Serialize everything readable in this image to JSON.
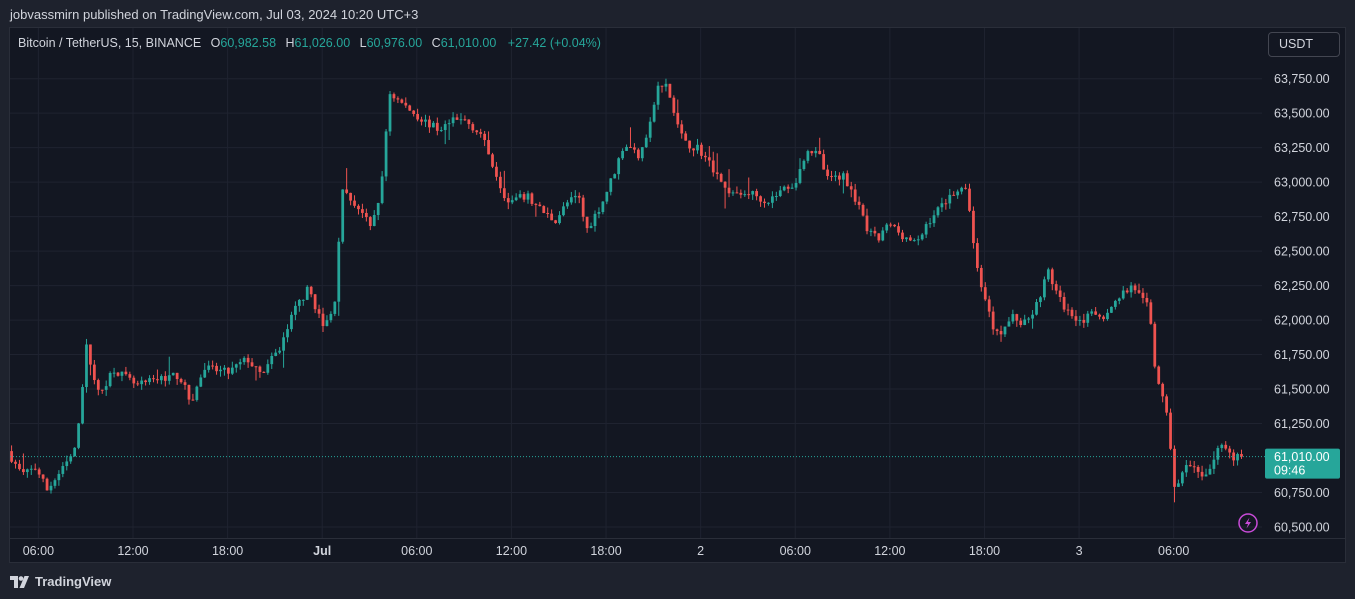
{
  "header": {
    "publisher_line": "jobvassmirn published on TradingView.com, Jul 03, 2024 10:20 UTC+3"
  },
  "legend": {
    "symbol": "Bitcoin / TetherUS, 15, BINANCE",
    "o_label": "O",
    "o_value": "60,982.58",
    "h_label": "H",
    "h_value": "61,026.00",
    "l_label": "L",
    "l_value": "60,976.00",
    "c_label": "C",
    "c_value": "61,010.00",
    "change": "+27.42 (+0.04%)"
  },
  "currency_button": {
    "label": "USDT"
  },
  "price_tag": {
    "price": "61,010.00",
    "countdown": "09:46"
  },
  "footer": {
    "brand": "TradingView"
  },
  "colors": {
    "up": "#26a69a",
    "down": "#ef5350",
    "background": "#131722",
    "grid": "#1f2330",
    "text": "#d1d4dc",
    "alert_icon": "#c84bd8"
  },
  "icons": {
    "alert": "lightning-icon",
    "logo": "tradingview-logo-icon"
  },
  "chart_data": {
    "type": "candlestick",
    "title": "",
    "xlabel": "",
    "ylabel": "",
    "ylim": [
      60420,
      63900
    ],
    "last_price": 61010,
    "y_ticks": [
      {
        "value": 63750,
        "label": "63,750.00"
      },
      {
        "value": 63500,
        "label": "63,500.00"
      },
      {
        "value": 63250,
        "label": "63,250.00"
      },
      {
        "value": 63000,
        "label": "63,000.00"
      },
      {
        "value": 62750,
        "label": "62,750.00"
      },
      {
        "value": 62500,
        "label": "62,500.00"
      },
      {
        "value": 62250,
        "label": "62,250.00"
      },
      {
        "value": 62000,
        "label": "62,000.00"
      },
      {
        "value": 61750,
        "label": "61,750.00"
      },
      {
        "value": 61500,
        "label": "61,500.00"
      },
      {
        "value": 61250,
        "label": "61,250.00"
      },
      {
        "value": 60750,
        "label": "60,750.00"
      },
      {
        "value": 60500,
        "label": "60,500.00"
      }
    ],
    "x_ticks": [
      {
        "t": 6,
        "label": "06:00",
        "bold": false
      },
      {
        "t": 12,
        "label": "12:00",
        "bold": false
      },
      {
        "t": 18,
        "label": "18:00",
        "bold": false
      },
      {
        "t": 24,
        "label": "Jul",
        "bold": true
      },
      {
        "t": 30,
        "label": "06:00",
        "bold": false
      },
      {
        "t": 36,
        "label": "12:00",
        "bold": false
      },
      {
        "t": 42,
        "label": "18:00",
        "bold": false
      },
      {
        "t": 48,
        "label": "2",
        "bold": false
      },
      {
        "t": 54,
        "label": "06:00",
        "bold": false
      },
      {
        "t": 60,
        "label": "12:00",
        "bold": false
      },
      {
        "t": 66,
        "label": "18:00",
        "bold": false
      },
      {
        "t": 72,
        "label": "3",
        "bold": false
      },
      {
        "t": 78,
        "label": "06:00",
        "bold": false
      }
    ],
    "t_range": [
      4.2,
      83.6
    ],
    "interval_hours": 0.25,
    "start_t": 4.3,
    "path": [
      [
        4.3,
        61050
      ],
      [
        5.2,
        60880
      ],
      [
        6.1,
        60930
      ],
      [
        6.8,
        60770
      ],
      [
        7.8,
        60920
      ],
      [
        8.6,
        61060
      ],
      [
        9.3,
        61800
      ],
      [
        10.1,
        61450
      ],
      [
        11.0,
        61650
      ],
      [
        12.5,
        61520
      ],
      [
        14.0,
        61580
      ],
      [
        15.2,
        61600
      ],
      [
        15.9,
        61400
      ],
      [
        16.8,
        61650
      ],
      [
        18.3,
        61620
      ],
      [
        19.5,
        61720
      ],
      [
        20.3,
        61600
      ],
      [
        21.5,
        61780
      ],
      [
        22.6,
        62100
      ],
      [
        23.4,
        62230
      ],
      [
        24.3,
        61950
      ],
      [
        25.0,
        62070
      ],
      [
        25.5,
        62930
      ],
      [
        26.7,
        62800
      ],
      [
        27.3,
        62660
      ],
      [
        28.0,
        62950
      ],
      [
        28.5,
        63650
      ],
      [
        29.2,
        63580
      ],
      [
        30.5,
        63460
      ],
      [
        31.6,
        63380
      ],
      [
        32.5,
        63440
      ],
      [
        33.3,
        63450
      ],
      [
        34.3,
        63350
      ],
      [
        35.0,
        63150
      ],
      [
        36.0,
        62850
      ],
      [
        37.2,
        62900
      ],
      [
        38.3,
        62780
      ],
      [
        39.0,
        62720
      ],
      [
        39.8,
        62850
      ],
      [
        40.5,
        62900
      ],
      [
        41.0,
        62650
      ],
      [
        42.0,
        62850
      ],
      [
        42.8,
        63080
      ],
      [
        43.4,
        63280
      ],
      [
        44.3,
        63200
      ],
      [
        45.0,
        63400
      ],
      [
        45.5,
        63680
      ],
      [
        46.1,
        63700
      ],
      [
        46.5,
        63520
      ],
      [
        47.2,
        63280
      ],
      [
        48.1,
        63250
      ],
      [
        48.7,
        63150
      ],
      [
        49.4,
        63050
      ],
      [
        49.8,
        62950
      ],
      [
        50.6,
        62900
      ],
      [
        51.3,
        62930
      ],
      [
        52.5,
        62860
      ],
      [
        53.5,
        62950
      ],
      [
        54.3,
        63000
      ],
      [
        55.0,
        63250
      ],
      [
        55.8,
        63180
      ],
      [
        56.3,
        63020
      ],
      [
        57.3,
        63050
      ],
      [
        58.0,
        62900
      ],
      [
        58.8,
        62650
      ],
      [
        59.5,
        62580
      ],
      [
        60.2,
        62700
      ],
      [
        61.0,
        62620
      ],
      [
        62.0,
        62550
      ],
      [
        62.6,
        62700
      ],
      [
        63.3,
        62800
      ],
      [
        64.0,
        62900
      ],
      [
        64.6,
        62950
      ],
      [
        65.2,
        62920
      ],
      [
        65.7,
        62400
      ],
      [
        66.2,
        62200
      ],
      [
        66.8,
        61950
      ],
      [
        67.4,
        61920
      ],
      [
        68.0,
        62030
      ],
      [
        68.7,
        61970
      ],
      [
        69.5,
        62100
      ],
      [
        70.3,
        62350
      ],
      [
        71.0,
        62150
      ],
      [
        71.6,
        62050
      ],
      [
        72.5,
        62000
      ],
      [
        73.3,
        62050
      ],
      [
        74.0,
        62030
      ],
      [
        74.8,
        62180
      ],
      [
        75.7,
        62250
      ],
      [
        76.2,
        62150
      ],
      [
        76.7,
        62080
      ],
      [
        77.0,
        61700
      ],
      [
        77.5,
        61450
      ],
      [
        77.9,
        61250
      ],
      [
        78.3,
        60800
      ],
      [
        79.2,
        60950
      ],
      [
        80.0,
        60850
      ],
      [
        80.7,
        60960
      ],
      [
        81.3,
        61120
      ],
      [
        82.0,
        61000
      ],
      [
        82.3,
        61010
      ]
    ],
    "seed": 7
  }
}
